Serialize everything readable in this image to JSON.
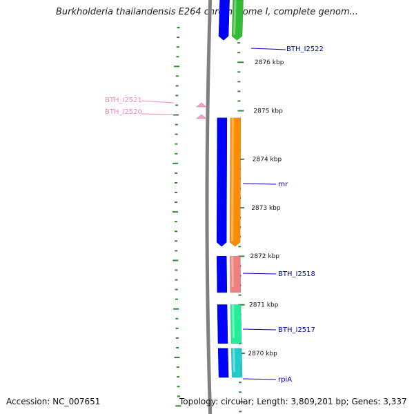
{
  "title": "Burkholderia thailandensis E264 chromosome I, complete genom...",
  "accession": "Accession: NC_007651",
  "topology": "Topology: circular; Length: 3,809,201 bp; Genes: 3,337",
  "colors": {
    "backbone": "#808080",
    "forward_strand": "#0000ff",
    "tick": "#2e8b2e",
    "label_line_blue": "#0000cc",
    "label_pink": "#ee88bb"
  },
  "scale": {
    "unit": "kbp",
    "labels": [
      {
        "kbp": 2876,
        "text": "2876 kbp"
      },
      {
        "kbp": 2875,
        "text": "2875 kbp"
      },
      {
        "kbp": 2874,
        "text": "2874 kbp"
      },
      {
        "kbp": 2873,
        "text": "2873 kbp"
      },
      {
        "kbp": 2872,
        "text": "2872 kbp"
      },
      {
        "kbp": 2871,
        "text": "2871 kbp"
      },
      {
        "kbp": 2870,
        "text": "2870 kbp"
      }
    ]
  },
  "genes": [
    {
      "name": "BTH_I2522",
      "start_kbp": 2876.45,
      "end_kbp": 2877.3,
      "color": "#33bb33",
      "label": "BTH_I2522"
    },
    {
      "name": "rnr",
      "start_kbp": 2872.2,
      "end_kbp": 2874.85,
      "color": "#ff8c00",
      "label": "rnr"
    },
    {
      "name": "BTH_I2518",
      "start_kbp": 2871.25,
      "end_kbp": 2872.0,
      "color": "#f08080",
      "label": "BTH_I2518"
    },
    {
      "name": "BTH_I2517",
      "start_kbp": 2870.2,
      "end_kbp": 2871.0,
      "color": "#22ee99",
      "label": "BTH_I2517"
    },
    {
      "name": "rpiA",
      "start_kbp": 2869.5,
      "end_kbp": 2870.1,
      "color": "#22cccc",
      "label": "rpiA"
    }
  ],
  "small_features": [
    {
      "name": "BTH_I2521",
      "label": "BTH_I2521"
    },
    {
      "name": "BTH_I2520",
      "label": "BTH_I2520"
    }
  ]
}
